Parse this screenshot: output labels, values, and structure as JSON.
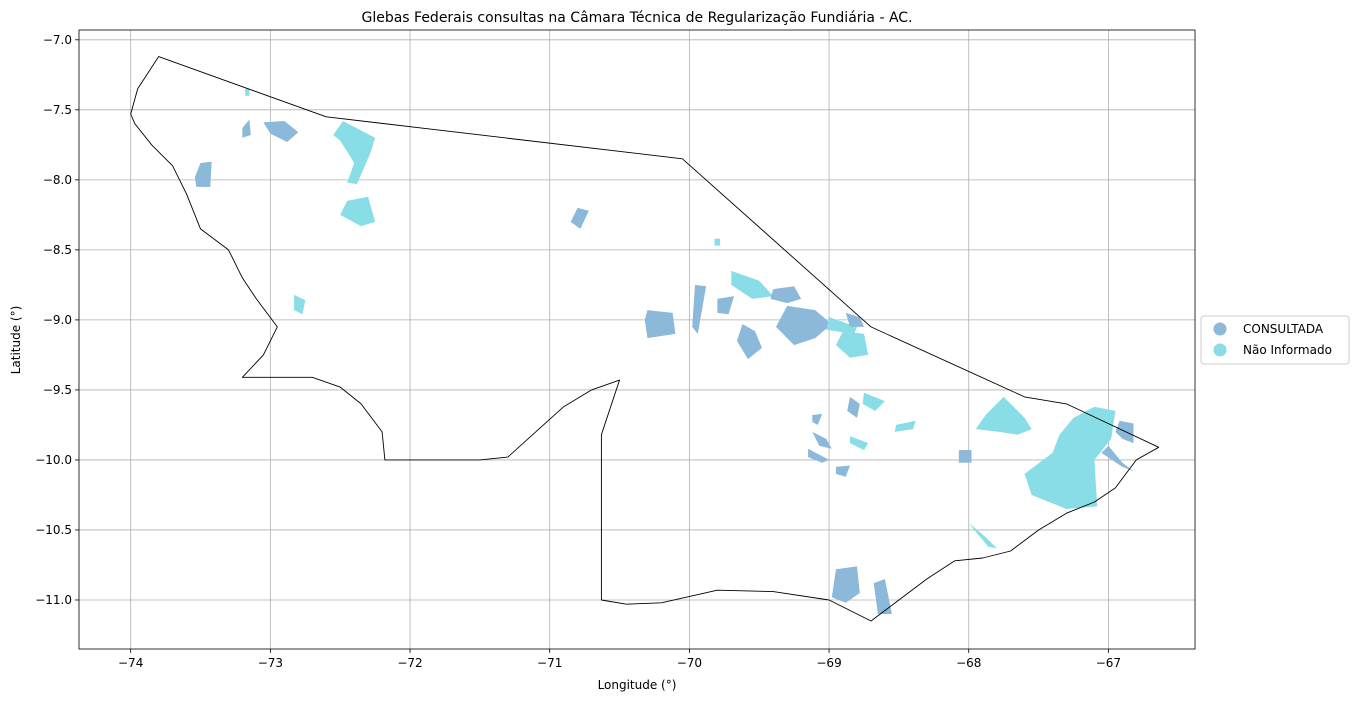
{
  "chart_data": {
    "type": "map",
    "title": "Glebas Federais consultas na Câmara Técnica de Regularização Fundiária - AC.",
    "xlabel": "Longitude (°)",
    "ylabel": "Latitude (°)",
    "xlim": [
      -74.37,
      -66.38
    ],
    "ylim": [
      -11.35,
      -6.93
    ],
    "x_ticks": [
      -74,
      -73,
      -72,
      -71,
      -70,
      -69,
      -68,
      -67
    ],
    "x_tick_labels": [
      "−74",
      "−73",
      "−72",
      "−71",
      "−70",
      "−69",
      "−68",
      "−67"
    ],
    "y_ticks": [
      -7.0,
      -7.5,
      -8.0,
      -8.5,
      -9.0,
      -9.5,
      -10.0,
      -10.5,
      -11.0
    ],
    "y_tick_labels": [
      "−7.0",
      "−7.5",
      "−8.0",
      "−8.5",
      "−9.0",
      "−9.5",
      "−10.0",
      "−10.5",
      "−11.0"
    ],
    "grid": true,
    "legend_position": "right-center",
    "legend": [
      {
        "label": "CONSULTADA",
        "color": "#8cb8d9"
      },
      {
        "label": "Não Informado",
        "color": "#89dde6"
      }
    ],
    "state_border_color": "#000000",
    "state_border_lonlat": [
      [
        -73.8,
        -7.12
      ],
      [
        -72.6,
        -7.55
      ],
      [
        -70.05,
        -7.85
      ],
      [
        -68.7,
        -9.05
      ],
      [
        -67.6,
        -9.55
      ],
      [
        -67.3,
        -9.6
      ],
      [
        -66.64,
        -9.91
      ],
      [
        -66.8,
        -10.0
      ],
      [
        -66.95,
        -10.2
      ],
      [
        -67.1,
        -10.3
      ],
      [
        -67.3,
        -10.38
      ],
      [
        -67.5,
        -10.5
      ],
      [
        -67.7,
        -10.65
      ],
      [
        -67.9,
        -10.7
      ],
      [
        -68.1,
        -10.72
      ],
      [
        -68.3,
        -10.85
      ],
      [
        -68.5,
        -11.0
      ],
      [
        -68.7,
        -11.15
      ],
      [
        -69.0,
        -11.0
      ],
      [
        -69.4,
        -10.94
      ],
      [
        -69.8,
        -10.93
      ],
      [
        -70.2,
        -11.02
      ],
      [
        -70.45,
        -11.03
      ],
      [
        -70.63,
        -11.0
      ],
      [
        -70.63,
        -9.82
      ],
      [
        -70.5,
        -9.43
      ],
      [
        -70.7,
        -9.5
      ],
      [
        -70.9,
        -9.62
      ],
      [
        -71.1,
        -9.8
      ],
      [
        -71.3,
        -9.98
      ],
      [
        -71.5,
        -10.0
      ],
      [
        -72.18,
        -10.0
      ],
      [
        -72.2,
        -9.8
      ],
      [
        -72.35,
        -9.6
      ],
      [
        -72.5,
        -9.48
      ],
      [
        -72.7,
        -9.41
      ],
      [
        -73.2,
        -9.41
      ],
      [
        -73.05,
        -9.25
      ],
      [
        -72.95,
        -9.05
      ],
      [
        -73.1,
        -8.85
      ],
      [
        -73.2,
        -8.7
      ],
      [
        -73.3,
        -8.5
      ],
      [
        -73.5,
        -8.35
      ],
      [
        -73.6,
        -8.1
      ],
      [
        -73.7,
        -7.9
      ],
      [
        -73.85,
        -7.75
      ],
      [
        -73.97,
        -7.6
      ],
      [
        -74.0,
        -7.53
      ],
      [
        -73.95,
        -7.35
      ],
      [
        -73.8,
        -7.12
      ]
    ],
    "glebas": [
      {
        "status": "CONSULTADA",
        "lonlat": [
          [
            -73.05,
            -7.59
          ],
          [
            -72.9,
            -7.58
          ],
          [
            -72.8,
            -7.66
          ],
          [
            -72.88,
            -7.73
          ],
          [
            -73.0,
            -7.67
          ]
        ]
      },
      {
        "status": "CONSULTADA",
        "lonlat": [
          [
            -73.5,
            -7.88
          ],
          [
            -73.42,
            -7.87
          ],
          [
            -73.43,
            -8.05
          ],
          [
            -73.53,
            -8.05
          ],
          [
            -73.54,
            -7.98
          ]
        ]
      },
      {
        "status": "CONSULTADA",
        "lonlat": [
          [
            -73.2,
            -7.63
          ],
          [
            -73.15,
            -7.57
          ],
          [
            -73.14,
            -7.68
          ],
          [
            -73.2,
            -7.7
          ]
        ]
      },
      {
        "status": "Não Informado",
        "lonlat": [
          [
            -72.48,
            -7.58
          ],
          [
            -72.25,
            -7.7
          ],
          [
            -72.28,
            -7.8
          ],
          [
            -72.38,
            -8.03
          ],
          [
            -72.45,
            -8.02
          ],
          [
            -72.4,
            -7.88
          ],
          [
            -72.5,
            -7.72
          ],
          [
            -72.55,
            -7.68
          ]
        ]
      },
      {
        "status": "Não Informado",
        "lonlat": [
          [
            -72.45,
            -8.15
          ],
          [
            -72.3,
            -8.12
          ],
          [
            -72.25,
            -8.3
          ],
          [
            -72.35,
            -8.33
          ],
          [
            -72.5,
            -8.25
          ]
        ]
      },
      {
        "status": "Não Informado",
        "lonlat": [
          [
            -72.83,
            -8.82
          ],
          [
            -72.75,
            -8.86
          ],
          [
            -72.77,
            -8.96
          ],
          [
            -72.83,
            -8.93
          ]
        ]
      },
      {
        "status": "CONSULTADA",
        "lonlat": [
          [
            -70.8,
            -8.2
          ],
          [
            -70.72,
            -8.22
          ],
          [
            -70.78,
            -8.35
          ],
          [
            -70.85,
            -8.3
          ]
        ]
      },
      {
        "status": "CONSULTADA",
        "lonlat": [
          [
            -70.3,
            -8.93
          ],
          [
            -70.12,
            -8.95
          ],
          [
            -70.1,
            -9.1
          ],
          [
            -70.3,
            -9.13
          ],
          [
            -70.32,
            -9.0
          ]
        ]
      },
      {
        "status": "CONSULTADA",
        "lonlat": [
          [
            -69.96,
            -8.75
          ],
          [
            -69.88,
            -8.76
          ],
          [
            -69.94,
            -9.1
          ],
          [
            -69.98,
            -9.05
          ]
        ]
      },
      {
        "status": "CONSULTADA",
        "lonlat": [
          [
            -69.8,
            -8.85
          ],
          [
            -69.68,
            -8.83
          ],
          [
            -69.72,
            -8.96
          ],
          [
            -69.8,
            -8.95
          ]
        ]
      },
      {
        "status": "CONSULTADA",
        "lonlat": [
          [
            -69.62,
            -9.03
          ],
          [
            -69.53,
            -9.08
          ],
          [
            -69.48,
            -9.2
          ],
          [
            -69.58,
            -9.28
          ],
          [
            -69.66,
            -9.15
          ]
        ]
      },
      {
        "status": "Não Informado",
        "lonlat": [
          [
            -69.7,
            -8.65
          ],
          [
            -69.5,
            -8.72
          ],
          [
            -69.4,
            -8.83
          ],
          [
            -69.55,
            -8.85
          ],
          [
            -69.7,
            -8.75
          ]
        ]
      },
      {
        "status": "CONSULTADA",
        "lonlat": [
          [
            -69.4,
            -8.78
          ],
          [
            -69.25,
            -8.76
          ],
          [
            -69.2,
            -8.85
          ],
          [
            -69.3,
            -8.88
          ],
          [
            -69.42,
            -8.85
          ]
        ]
      },
      {
        "status": "CONSULTADA",
        "lonlat": [
          [
            -69.3,
            -8.9
          ],
          [
            -69.1,
            -8.93
          ],
          [
            -68.98,
            -9.03
          ],
          [
            -69.1,
            -9.13
          ],
          [
            -69.25,
            -9.18
          ],
          [
            -69.38,
            -9.05
          ]
        ]
      },
      {
        "status": "Não Informado",
        "lonlat": [
          [
            -69.0,
            -8.98
          ],
          [
            -68.8,
            -9.05
          ],
          [
            -68.82,
            -9.1
          ],
          [
            -69.02,
            -9.07
          ]
        ]
      },
      {
        "status": "Não Informado",
        "lonlat": [
          [
            -68.9,
            -9.08
          ],
          [
            -68.75,
            -9.1
          ],
          [
            -68.72,
            -9.25
          ],
          [
            -68.85,
            -9.27
          ],
          [
            -68.95,
            -9.18
          ]
        ]
      },
      {
        "status": "CONSULTADA",
        "lonlat": [
          [
            -68.88,
            -8.95
          ],
          [
            -68.78,
            -8.98
          ],
          [
            -68.75,
            -9.05
          ],
          [
            -68.85,
            -9.05
          ]
        ]
      },
      {
        "status": "CONSULTADA",
        "lonlat": [
          [
            -68.85,
            -9.55
          ],
          [
            -68.78,
            -9.6
          ],
          [
            -68.8,
            -9.7
          ],
          [
            -68.87,
            -9.65
          ]
        ]
      },
      {
        "status": "Não Informado",
        "lonlat": [
          [
            -68.75,
            -9.52
          ],
          [
            -68.6,
            -9.58
          ],
          [
            -68.67,
            -9.65
          ],
          [
            -68.76,
            -9.6
          ]
        ]
      },
      {
        "status": "CONSULTADA",
        "lonlat": [
          [
            -69.12,
            -9.68
          ],
          [
            -69.05,
            -9.67
          ],
          [
            -69.08,
            -9.75
          ],
          [
            -69.12,
            -9.73
          ]
        ]
      },
      {
        "status": "CONSULTADA",
        "lonlat": [
          [
            -69.12,
            -9.8
          ],
          [
            -69.02,
            -9.85
          ],
          [
            -68.98,
            -9.92
          ],
          [
            -69.07,
            -9.9
          ]
        ]
      },
      {
        "status": "Não Informado",
        "lonlat": [
          [
            -68.85,
            -9.83
          ],
          [
            -68.72,
            -9.88
          ],
          [
            -68.75,
            -9.93
          ],
          [
            -68.85,
            -9.88
          ]
        ]
      },
      {
        "status": "Não Informado",
        "lonlat": [
          [
            -68.52,
            -9.75
          ],
          [
            -68.38,
            -9.72
          ],
          [
            -68.4,
            -9.78
          ],
          [
            -68.53,
            -9.8
          ]
        ]
      },
      {
        "status": "CONSULTADA",
        "lonlat": [
          [
            -68.95,
            -10.05
          ],
          [
            -68.85,
            -10.04
          ],
          [
            -68.88,
            -10.12
          ],
          [
            -68.95,
            -10.1
          ]
        ]
      },
      {
        "status": "CONSULTADA",
        "lonlat": [
          [
            -69.15,
            -9.92
          ],
          [
            -69.0,
            -10.0
          ],
          [
            -69.05,
            -10.02
          ],
          [
            -69.15,
            -9.98
          ]
        ]
      },
      {
        "status": "CONSULTADA",
        "lonlat": [
          [
            -68.07,
            -9.93
          ],
          [
            -67.98,
            -9.93
          ],
          [
            -67.98,
            -10.02
          ],
          [
            -68.07,
            -10.02
          ]
        ]
      },
      {
        "status": "Não Informado",
        "lonlat": [
          [
            -67.75,
            -9.55
          ],
          [
            -67.6,
            -9.7
          ],
          [
            -67.55,
            -9.78
          ],
          [
            -67.65,
            -9.82
          ],
          [
            -67.78,
            -9.8
          ],
          [
            -67.95,
            -9.78
          ],
          [
            -67.88,
            -9.68
          ]
        ]
      },
      {
        "status": "Não Informado",
        "lonlat": [
          [
            -67.25,
            -9.7
          ],
          [
            -67.1,
            -9.62
          ],
          [
            -66.95,
            -9.65
          ],
          [
            -66.98,
            -9.85
          ],
          [
            -67.1,
            -10.0
          ],
          [
            -67.08,
            -10.33
          ],
          [
            -67.3,
            -10.35
          ],
          [
            -67.55,
            -10.25
          ],
          [
            -67.6,
            -10.1
          ],
          [
            -67.4,
            -9.95
          ],
          [
            -67.35,
            -9.82
          ]
        ]
      },
      {
        "status": "CONSULTADA",
        "lonlat": [
          [
            -66.92,
            -9.72
          ],
          [
            -66.82,
            -9.74
          ],
          [
            -66.82,
            -9.88
          ],
          [
            -66.9,
            -9.85
          ],
          [
            -66.95,
            -9.8
          ]
        ]
      },
      {
        "status": "CONSULTADA",
        "lonlat": [
          [
            -67.0,
            -9.9
          ],
          [
            -66.9,
            -10.02
          ],
          [
            -66.82,
            -10.08
          ],
          [
            -66.9,
            -10.05
          ],
          [
            -67.05,
            -9.95
          ]
        ]
      },
      {
        "status": "Não Informado",
        "lonlat": [
          [
            -68.0,
            -10.45
          ],
          [
            -67.88,
            -10.55
          ],
          [
            -67.8,
            -10.63
          ],
          [
            -67.86,
            -10.62
          ],
          [
            -67.96,
            -10.5
          ]
        ]
      },
      {
        "status": "CONSULTADA",
        "lonlat": [
          [
            -68.95,
            -10.78
          ],
          [
            -68.8,
            -10.76
          ],
          [
            -68.78,
            -10.95
          ],
          [
            -68.88,
            -11.02
          ],
          [
            -68.98,
            -10.98
          ]
        ]
      },
      {
        "status": "CONSULTADA",
        "lonlat": [
          [
            -68.68,
            -10.88
          ],
          [
            -68.6,
            -10.85
          ],
          [
            -68.55,
            -11.1
          ],
          [
            -68.65,
            -11.1
          ]
        ]
      },
      {
        "status": "Não Informado",
        "lonlat": [
          [
            -69.82,
            -8.42
          ],
          [
            -69.78,
            -8.42
          ],
          [
            -69.78,
            -8.47
          ],
          [
            -69.82,
            -8.47
          ]
        ]
      },
      {
        "status": "Não Informado",
        "lonlat": [
          [
            -73.18,
            -7.35
          ],
          [
            -73.15,
            -7.35
          ],
          [
            -73.15,
            -7.4
          ],
          [
            -73.18,
            -7.4
          ]
        ]
      }
    ]
  }
}
